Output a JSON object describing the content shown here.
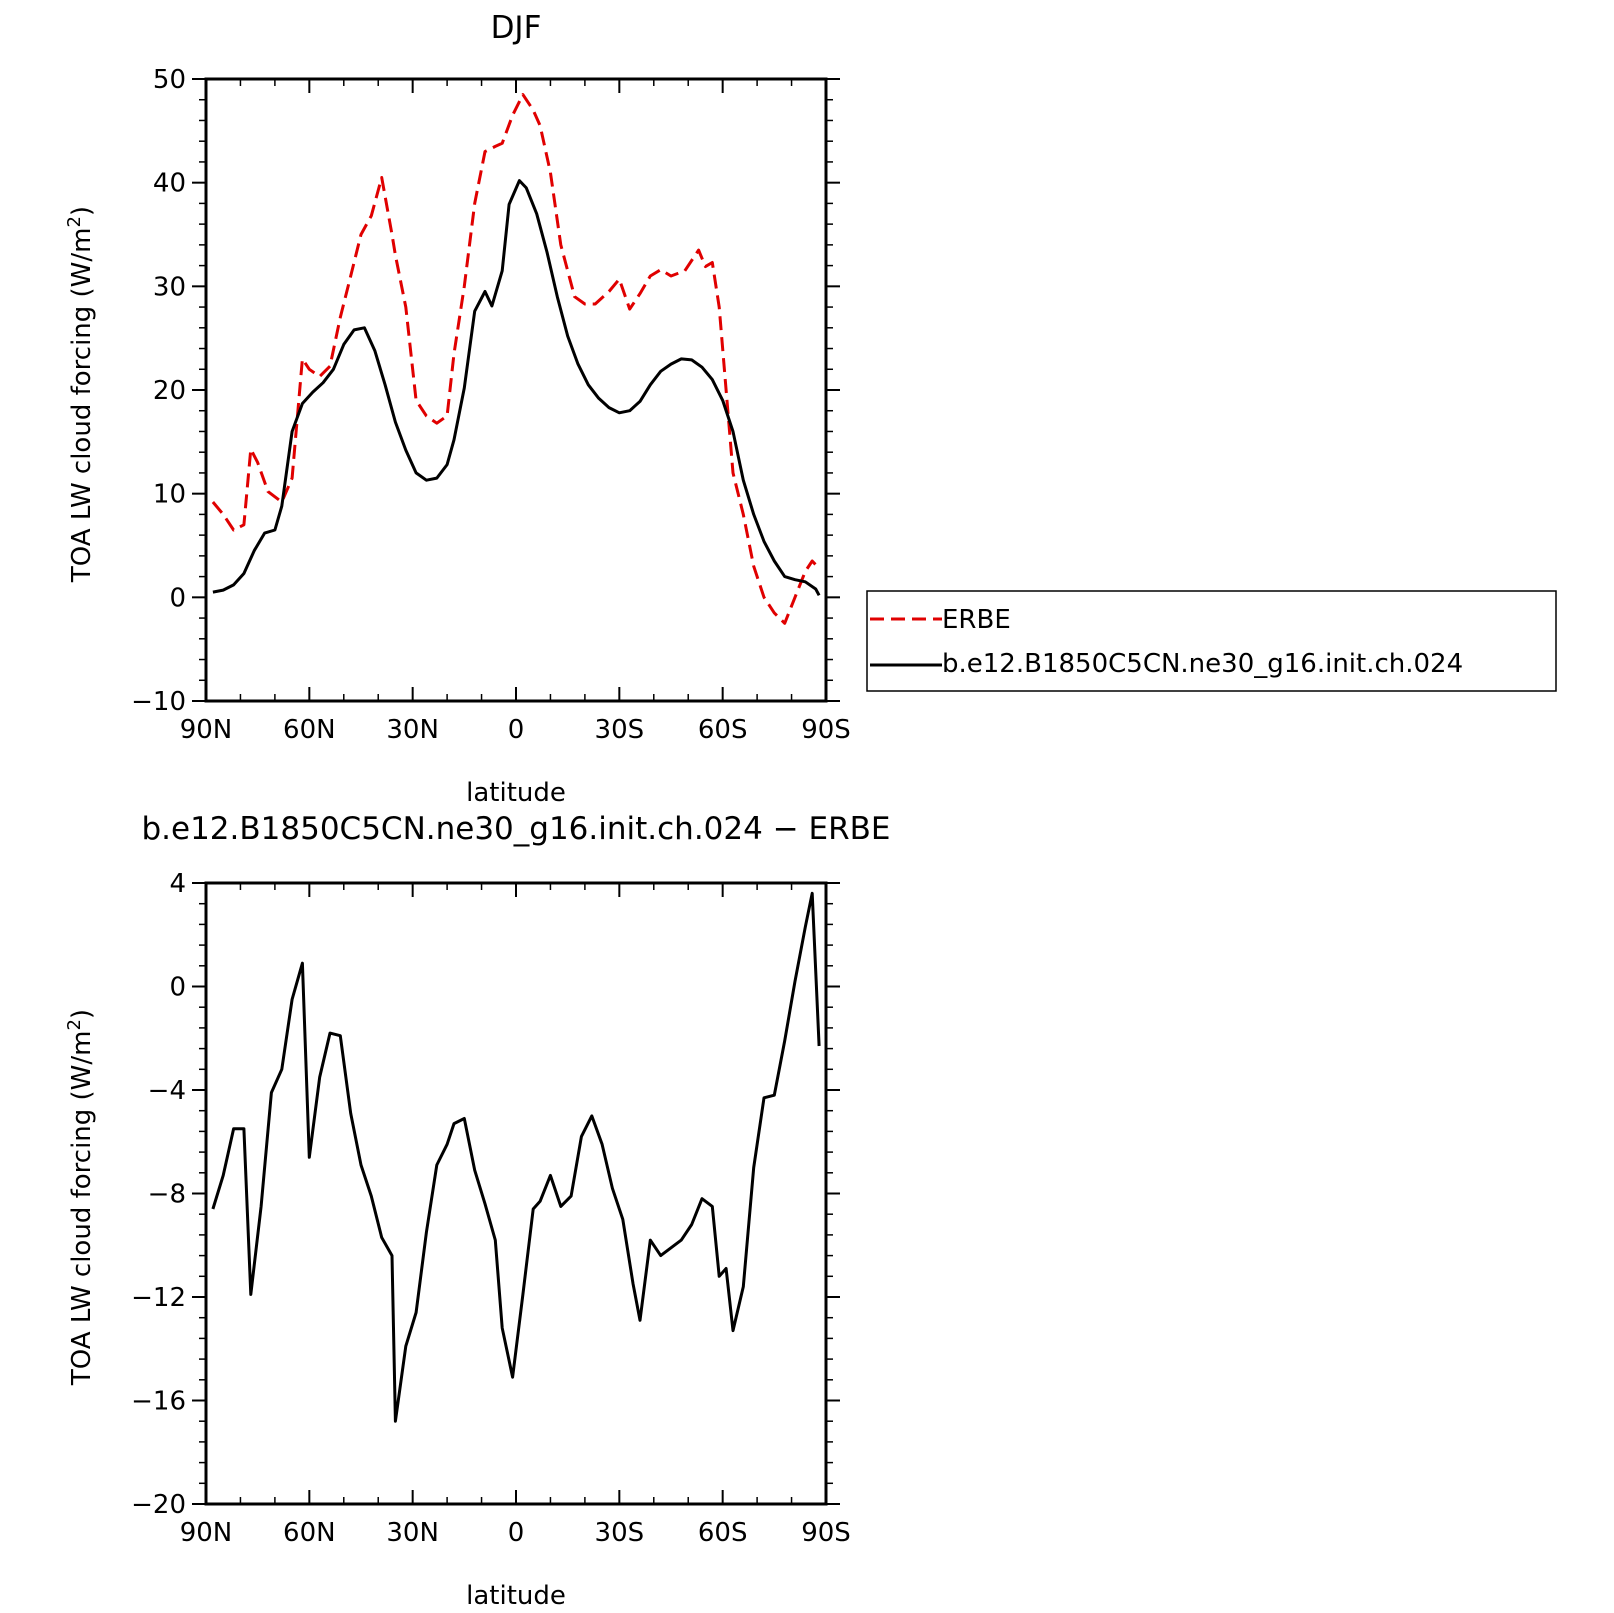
{
  "colors": {
    "erbe": "#e00000",
    "model": "#000000",
    "background": "#ffffff"
  },
  "chart_data": [
    {
      "type": "line",
      "title": "DJF",
      "xlabel": "latitude",
      "ylabel": "TOA LW cloud forcing (W/m",
      "ylabel_sup": "2",
      "ylabel_close": ")",
      "xlim": [
        90,
        -90
      ],
      "ylim": [
        -10,
        50
      ],
      "xticks": [
        90,
        60,
        30,
        0,
        -30,
        -60,
        -90
      ],
      "xtick_labels": [
        "90N",
        "60N",
        "30N",
        "0",
        "30S",
        "60S",
        "90S"
      ],
      "yticks": [
        -10,
        0,
        10,
        20,
        30,
        40,
        50
      ],
      "ytick_labels": [
        "−10",
        "0",
        "10",
        "20",
        "30",
        "40",
        "50"
      ],
      "legend_position": "right, outside plot",
      "series": [
        {
          "name": "ERBE",
          "style": "dashed",
          "x": [
            88,
            85,
            82,
            79,
            77,
            75,
            72,
            68,
            65,
            62,
            60,
            57,
            54,
            51,
            48,
            45,
            42,
            39,
            36,
            35,
            32,
            29,
            26,
            23,
            20,
            18,
            15,
            12,
            9,
            6,
            4,
            1,
            -2,
            -5,
            -7,
            -10,
            -13,
            -17,
            -20,
            -23,
            -27,
            -30,
            -33,
            -36,
            -39,
            -42,
            -45,
            -49,
            -53,
            -55,
            -57,
            -59,
            -61,
            -63,
            -66,
            -69,
            -72,
            -75,
            -78,
            -81,
            -84,
            -86,
            -88
          ],
          "y": [
            9.2,
            8.0,
            6.5,
            7.0,
            14.3,
            13.0,
            10.2,
            9.2,
            11.5,
            23.0,
            22.0,
            21.3,
            22.3,
            27.0,
            31.0,
            35.0,
            36.8,
            40.5,
            35.0,
            33.0,
            28.0,
            19.0,
            17.5,
            16.8,
            17.5,
            23.5,
            30.0,
            38.0,
            43.0,
            43.5,
            43.8,
            46.5,
            48.5,
            47.0,
            45.5,
            41.0,
            34.0,
            29.0,
            28.3,
            28.3,
            29.5,
            30.7,
            27.8,
            29.3,
            31.0,
            31.6,
            31.0,
            31.5,
            33.5,
            31.9,
            32.3,
            28.0,
            20.0,
            12.0,
            8.0,
            3.0,
            0.0,
            -1.5,
            -2.5,
            0.0,
            2.5,
            3.5,
            2.8
          ]
        },
        {
          "name": "b.e12.B1850C5CN.ne30_g16.init.ch.024",
          "style": "solid",
          "x": [
            88,
            85,
            82,
            79,
            76,
            73,
            70,
            68,
            65,
            62,
            59,
            56,
            53,
            50,
            47,
            44,
            41,
            38,
            35,
            32,
            29,
            26,
            23,
            20,
            18,
            15,
            12,
            9,
            7,
            4,
            2,
            -1,
            -3,
            -6,
            -9,
            -12,
            -15,
            -18,
            -21,
            -24,
            -27,
            -30,
            -33,
            -36,
            -39,
            -42,
            -45,
            -48,
            -51,
            -54,
            -57,
            -60,
            -63,
            -66,
            -69,
            -72,
            -75,
            -78,
            -81,
            -84,
            -87,
            -88
          ],
          "y": [
            0.5,
            0.7,
            1.2,
            2.3,
            4.5,
            6.2,
            6.5,
            8.8,
            16.0,
            18.7,
            19.8,
            20.7,
            22.0,
            24.4,
            25.8,
            26.0,
            23.8,
            20.5,
            16.9,
            14.2,
            12.0,
            11.3,
            11.5,
            12.8,
            15.2,
            20.2,
            27.6,
            29.5,
            28.1,
            31.5,
            37.9,
            40.2,
            39.5,
            37.0,
            33.3,
            29.0,
            25.2,
            22.5,
            20.5,
            19.2,
            18.3,
            17.8,
            18.0,
            18.9,
            20.5,
            21.8,
            22.5,
            23.0,
            22.9,
            22.2,
            21.0,
            19.0,
            16.0,
            11.3,
            8.0,
            5.4,
            3.5,
            2.0,
            1.7,
            1.5,
            0.8,
            0.2
          ]
        }
      ]
    },
    {
      "type": "line",
      "title": "b.e12.B1850C5CN.ne30_g16.init.ch.024 − ERBE",
      "xlabel": "latitude",
      "ylabel": "TOA LW cloud forcing (W/m",
      "ylabel_sup": "2",
      "ylabel_close": ")",
      "xlim": [
        90,
        -90
      ],
      "ylim": [
        -20,
        4
      ],
      "xticks": [
        90,
        60,
        30,
        0,
        -30,
        -60,
        -90
      ],
      "xtick_labels": [
        "90N",
        "60N",
        "30N",
        "0",
        "30S",
        "60S",
        "90S"
      ],
      "yticks": [
        -20,
        -16,
        -12,
        -8,
        -4,
        0,
        4
      ],
      "ytick_labels": [
        "−20",
        "−16",
        "−12",
        "−8",
        "−4",
        "0",
        "4"
      ],
      "series": [
        {
          "style": "solid",
          "x": [
            88,
            85,
            82,
            79,
            77,
            74,
            71,
            68,
            65,
            62,
            60,
            57,
            54,
            51,
            48,
            45,
            42,
            39,
            36,
            35,
            32,
            29,
            26,
            23,
            20,
            18,
            15,
            12,
            9,
            6,
            4,
            1,
            -2,
            -5,
            -7,
            -10,
            -13,
            -16,
            -19,
            -22,
            -25,
            -28,
            -31,
            -34,
            -36,
            -39,
            -42,
            -45,
            -48,
            -51,
            -54,
            -57,
            -59,
            -61,
            -63,
            -66,
            -69,
            -72,
            -75,
            -78,
            -81,
            -84,
            -86,
            -88
          ],
          "y": [
            -8.6,
            -7.3,
            -5.5,
            -5.5,
            -11.9,
            -8.5,
            -4.1,
            -3.2,
            -0.5,
            0.9,
            -6.6,
            -3.5,
            -1.8,
            -1.9,
            -4.9,
            -6.9,
            -8.1,
            -9.7,
            -10.4,
            -16.8,
            -13.9,
            -12.6,
            -9.5,
            -6.9,
            -6.1,
            -5.3,
            -5.1,
            -7.1,
            -8.4,
            -9.8,
            -13.2,
            -15.1,
            -11.9,
            -8.6,
            -8.3,
            -7.3,
            -8.5,
            -8.1,
            -5.8,
            -5.0,
            -6.1,
            -7.8,
            -9.0,
            -11.5,
            -12.9,
            -9.8,
            -10.4,
            -10.1,
            -9.8,
            -9.2,
            -8.2,
            -8.5,
            -11.2,
            -10.9,
            -13.3,
            -11.6,
            -7.0,
            -4.3,
            -4.2,
            -2.1,
            0.2,
            2.3,
            3.6,
            -2.3
          ]
        }
      ]
    }
  ]
}
